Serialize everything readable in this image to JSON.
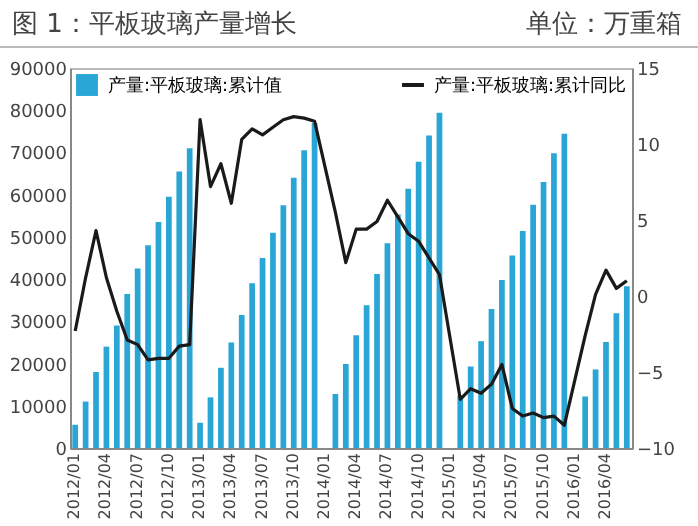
{
  "chart_data": {
    "type": "bar",
    "title": "图 1：平板玻璃产量增长",
    "subtitle": "单位：万重箱",
    "categories": [
      "2012/01",
      null,
      null,
      "2012/04",
      null,
      null,
      "2012/07",
      null,
      null,
      "2012/10",
      null,
      null,
      "2013/01",
      null,
      null,
      "2013/04",
      null,
      null,
      "2013/07",
      null,
      null,
      "2013/10",
      null,
      null,
      "2014/01",
      null,
      null,
      "2014/04",
      null,
      null,
      "2014/07",
      null,
      null,
      "2014/10",
      null,
      null,
      "2015/01",
      null,
      null,
      "2015/04",
      null,
      null,
      "2015/07",
      null,
      null,
      "2015/10",
      null,
      null,
      "2016/01",
      null,
      null,
      "2016/04",
      null,
      null
    ],
    "series": [
      {
        "name": "产量:平板玻璃:累计值",
        "color": "#29a6d6",
        "values": [
          5500,
          11000,
          18000,
          24000,
          29000,
          36500,
          42500,
          48000,
          53500,
          59500,
          65500,
          71000,
          6000,
          12000,
          19000,
          25000,
          31500,
          39000,
          45000,
          51000,
          57500,
          64000,
          70500,
          77000,
          null,
          12800,
          19900,
          26700,
          33800,
          41200,
          48500,
          55300,
          61400,
          67800,
          74000,
          79400,
          null,
          12500,
          19300,
          25300,
          32900,
          39800,
          45600,
          51400,
          57600,
          63000,
          69800,
          74400,
          null,
          12200,
          18600,
          25100,
          31900,
          38300
        ]
      },
      {
        "name": "产量:平板玻璃:累计同比",
        "type": "line",
        "axis": "y2",
        "color": "#1a1a1a",
        "values": [
          -2.3,
          1.2,
          4.3,
          1.2,
          -1.0,
          -2.9,
          -3.2,
          -4.2,
          -4.1,
          -4.1,
          -3.3,
          -3.2,
          11.6,
          7.2,
          8.7,
          6.1,
          10.3,
          11.0,
          10.6,
          11.1,
          11.6,
          11.8,
          11.7,
          11.5,
          null,
          5.5,
          2.2,
          4.4,
          4.4,
          4.9,
          6.3,
          5.2,
          4.1,
          3.6,
          2.5,
          1.4,
          null,
          -6.8,
          -6.1,
          -6.4,
          -5.8,
          -4.5,
          -7.4,
          -7.9,
          -7.7,
          -8.0,
          -7.9,
          -8.5,
          null,
          -2.6,
          0.1,
          1.7,
          0.5,
          1.0
        ]
      }
    ],
    "ylim": [
      0,
      90000
    ],
    "yticks": [
      0,
      10000,
      20000,
      30000,
      40000,
      50000,
      60000,
      70000,
      80000,
      90000
    ],
    "y2lim": [
      -10,
      15
    ],
    "y2ticks": [
      -10,
      -5,
      0,
      5,
      10,
      15
    ],
    "legend": "top"
  }
}
